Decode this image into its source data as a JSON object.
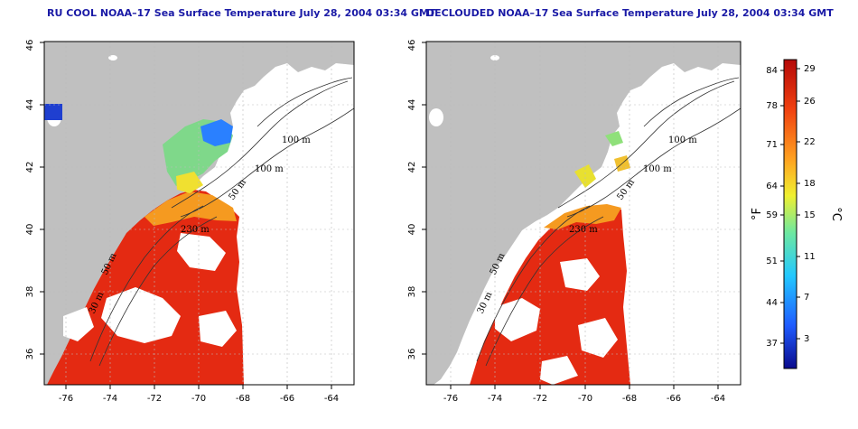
{
  "panels": [
    {
      "id": "left",
      "title": "RU COOL NOAA–17 Sea Surface Temperature July 28, 2004 03:34 GMT"
    },
    {
      "id": "right",
      "title": "DECLOUDED NOAA–17 Sea Surface Temperature July 28, 2004 03:34 GMT"
    }
  ],
  "axes": {
    "x_ticks": [
      "-76",
      "-74",
      "-72",
      "-70",
      "-68",
      "-66",
      "-64"
    ],
    "y_ticks": [
      "36",
      "38",
      "40",
      "42",
      "44",
      "46"
    ]
  },
  "contour_labels": [
    "100 m",
    "100 m",
    "50 m",
    "230 m",
    "50 m",
    "30 m"
  ],
  "colorbar": {
    "fahrenheit_ticks": [
      "84",
      "78",
      "71",
      "64",
      "59",
      "51",
      "44",
      "37"
    ],
    "celsius_ticks": [
      "29",
      "26",
      "22",
      "18",
      "15",
      "11",
      "7",
      "3"
    ],
    "fahrenheit_unit": "°F",
    "celsius_unit": "°C",
    "colors": [
      "#0a0a8c",
      "#1f5cff",
      "#22c8ff",
      "#6ee8a0",
      "#f0f030",
      "#ffa020",
      "#f04010",
      "#b40808"
    ]
  },
  "colors": {
    "land": "#c0c0c0",
    "water_nodata": "#ffffff",
    "warm_sst": "#e42a12",
    "title": "#1a1aa6"
  }
}
